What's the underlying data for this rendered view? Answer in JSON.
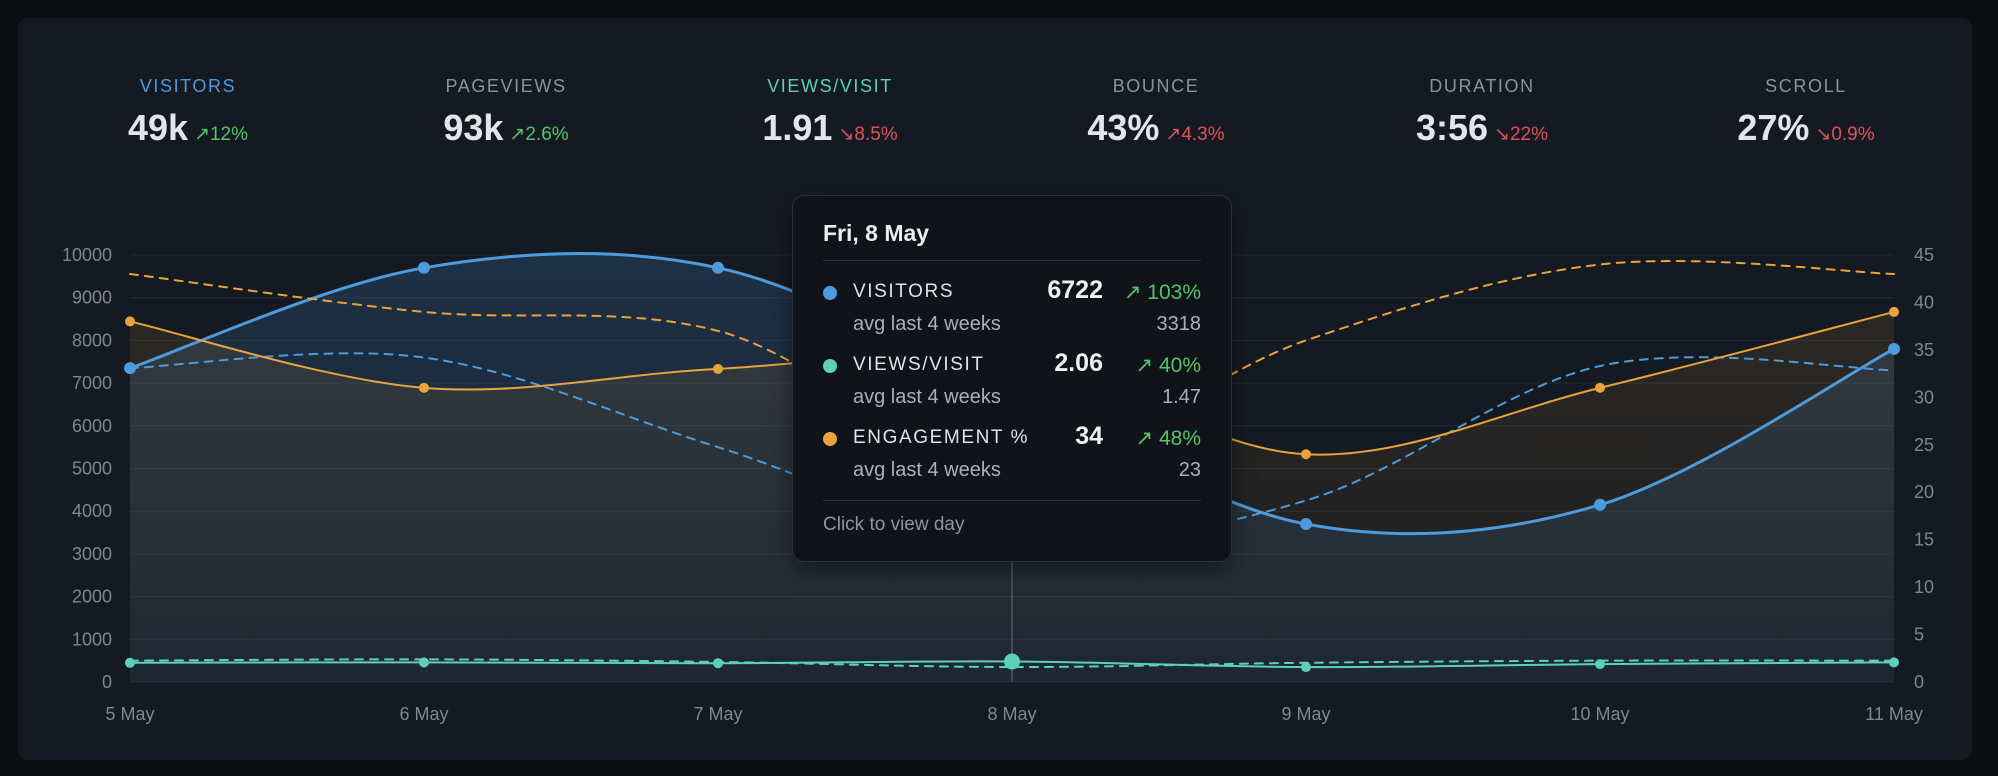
{
  "stats": [
    {
      "label": "VISITORS",
      "value": "49k",
      "change": "↗12%",
      "trend": "up",
      "color": "#4d9bdc"
    },
    {
      "label": "PAGEVIEWS",
      "value": "93k",
      "change": "↗2.6%",
      "trend": "up",
      "color": "#8b929c"
    },
    {
      "label": "VIEWS/VISIT",
      "value": "1.91",
      "change": "↘8.5%",
      "trend": "down",
      "color": "#5dd0bd"
    },
    {
      "label": "BOUNCE",
      "value": "43%",
      "change": "↗4.3%",
      "trend": "down",
      "color": "#8b929c"
    },
    {
      "label": "DURATION",
      "value": "3:56",
      "change": "↘22%",
      "trend": "down",
      "color": "#8b929c"
    },
    {
      "label": "SCROLL",
      "value": "27%",
      "change": "↘0.9%",
      "trend": "down",
      "color": "#8b929c"
    }
  ],
  "tooltip": {
    "title": "Fri, 8 May",
    "rows": [
      {
        "name": "VISITORS",
        "value": "6722",
        "change": "↗ 103%",
        "avg_label": "avg last 4 weeks",
        "avg_value": "3318",
        "color": "#4d9bdc"
      },
      {
        "name": "VIEWS/VISIT",
        "value": "2.06",
        "change": "↗ 40%",
        "avg_label": "avg last 4 weeks",
        "avg_value": "1.47",
        "color": "#5dd0bd"
      },
      {
        "name": "ENGAGEMENT %",
        "value": "34",
        "change": "↗ 48%",
        "avg_label": "avg last 4 weeks",
        "avg_value": "23",
        "color": "#e8a33d"
      }
    ],
    "footer": "Click to view day"
  },
  "chart_data": {
    "type": "line",
    "categories": [
      "5 May",
      "6 May",
      "7 May",
      "8 May",
      "9 May",
      "10 May",
      "11 May"
    ],
    "ylim_left": [
      0,
      10000
    ],
    "yticks_left": [
      0,
      1000,
      2000,
      3000,
      4000,
      5000,
      6000,
      7000,
      8000,
      9000,
      10000
    ],
    "ylim_right": [
      0,
      45
    ],
    "yticks_right": [
      0,
      5,
      10,
      15,
      20,
      25,
      30,
      35,
      40,
      45
    ],
    "grid": true,
    "highlight_category": "8 May",
    "series": [
      {
        "name": "VISITORS",
        "axis": "left",
        "color": "#4d9bdc",
        "style": "solid",
        "fill": true,
        "values": [
          7350,
          9700,
          9700,
          6722,
          3700,
          4150,
          7800
        ]
      },
      {
        "name": "VISITORS avg last 4 weeks",
        "axis": "left",
        "color": "#4d9bdc",
        "style": "dashed",
        "values": [
          7350,
          7600,
          5500,
          3318,
          4250,
          7400,
          7300
        ]
      },
      {
        "name": "ENGAGEMENT %",
        "axis": "right",
        "color": "#e8a33d",
        "style": "solid",
        "fill": true,
        "values": [
          38,
          31,
          33,
          34,
          24,
          31,
          39
        ]
      },
      {
        "name": "ENGAGEMENT % avg last 4 weeks",
        "axis": "right",
        "color": "#e8a33d",
        "style": "dashed",
        "values": [
          43,
          39,
          37,
          23,
          36,
          44,
          43
        ]
      },
      {
        "name": "VIEWS/VISIT",
        "axis": "left",
        "color": "#5dd0bd",
        "style": "solid",
        "values": [
          450,
          460,
          440,
          480,
          350,
          420,
          460
        ]
      },
      {
        "name": "VIEWS/VISIT avg last 4 weeks",
        "axis": "left",
        "color": "#5dd0bd",
        "style": "dashed",
        "values": [
          500,
          530,
          470,
          350,
          450,
          500,
          500
        ]
      }
    ]
  }
}
